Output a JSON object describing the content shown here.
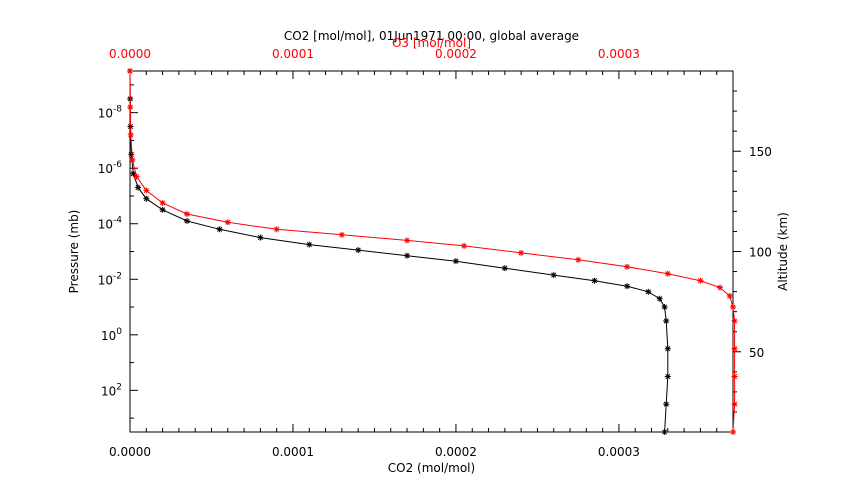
{
  "chart_data": {
    "type": "line",
    "title": "CO2 [mol/mol], 01Jun1971 00:00, global average",
    "xlabel": "CO2 (mol/mol)",
    "x2label": "O3 [mol/mol]",
    "ylabel": "Pressure (mb)",
    "y2label": "Altitude (km)",
    "xlim": [
      0,
      0.00037
    ],
    "x2lim": [
      0,
      0.00037
    ],
    "ylim_log10": [
      -9.5,
      3.5
    ],
    "y2lim": [
      10,
      190
    ],
    "x_ticks": [
      {
        "value": 0.0,
        "label": "0.0000"
      },
      {
        "value": 0.0001,
        "label": "0.0001"
      },
      {
        "value": 0.0002,
        "label": "0.0002"
      },
      {
        "value": 0.0003,
        "label": "0.0003"
      }
    ],
    "x2_ticks": [
      {
        "value": 0.0,
        "label": "0.0000"
      },
      {
        "value": 0.0001,
        "label": "0.0001"
      },
      {
        "value": 0.0002,
        "label": "0.0002"
      },
      {
        "value": 0.0003,
        "label": "0.0003"
      }
    ],
    "y_ticks": [
      {
        "exp": -8,
        "base": "10",
        "sup": "-8"
      },
      {
        "exp": -6,
        "base": "10",
        "sup": "-6"
      },
      {
        "exp": -4,
        "base": "10",
        "sup": "-4"
      },
      {
        "exp": -2,
        "base": "10",
        "sup": "-2"
      },
      {
        "exp": 0,
        "base": "10",
        "sup": "0"
      },
      {
        "exp": 2,
        "base": "10",
        "sup": "2"
      }
    ],
    "y2_ticks": [
      {
        "value": 50,
        "label": "50"
      },
      {
        "value": 100,
        "label": "100"
      },
      {
        "value": 150,
        "label": "150"
      }
    ],
    "series": [
      {
        "color": "#000000",
        "marker": "asterisk",
        "points": [
          [
            0.000328,
            3.5
          ],
          [
            0.000329,
            2.5
          ],
          [
            0.00033,
            1.5
          ],
          [
            0.00033,
            0.5
          ],
          [
            0.000329,
            -0.5
          ],
          [
            0.000328,
            -1.0
          ],
          [
            0.000325,
            -1.3
          ],
          [
            0.000318,
            -1.55
          ],
          [
            0.000305,
            -1.75
          ],
          [
            0.000285,
            -1.95
          ],
          [
            0.00026,
            -2.15
          ],
          [
            0.00023,
            -2.4
          ],
          [
            0.0002,
            -2.65
          ],
          [
            0.00017,
            -2.85
          ],
          [
            0.00014,
            -3.05
          ],
          [
            0.00011,
            -3.25
          ],
          [
            8e-05,
            -3.5
          ],
          [
            5.5e-05,
            -3.8
          ],
          [
            3.5e-05,
            -4.1
          ],
          [
            2e-05,
            -4.5
          ],
          [
            1e-05,
            -4.9
          ],
          [
            5e-06,
            -5.3
          ],
          [
            2e-06,
            -5.8
          ],
          [
            8e-07,
            -6.5
          ],
          [
            3e-07,
            -7.5
          ],
          [
            1e-07,
            -8.5
          ],
          [
            0.0,
            -9.5
          ]
        ]
      },
      {
        "color": "#ff0000",
        "marker": "asterisk",
        "points": [
          [
            0.00037,
            3.5
          ],
          [
            0.000371,
            2.5
          ],
          [
            0.000371,
            1.5
          ],
          [
            0.000371,
            0.5
          ],
          [
            0.000371,
            -0.5
          ],
          [
            0.00037,
            -1.0
          ],
          [
            0.000368,
            -1.4
          ],
          [
            0.000362,
            -1.7
          ],
          [
            0.00035,
            -1.95
          ],
          [
            0.00033,
            -2.2
          ],
          [
            0.000305,
            -2.45
          ],
          [
            0.000275,
            -2.7
          ],
          [
            0.00024,
            -2.95
          ],
          [
            0.000205,
            -3.2
          ],
          [
            0.00017,
            -3.4
          ],
          [
            0.00013,
            -3.6
          ],
          [
            9e-05,
            -3.8
          ],
          [
            6e-05,
            -4.05
          ],
          [
            3.5e-05,
            -4.35
          ],
          [
            2e-05,
            -4.75
          ],
          [
            1e-05,
            -5.2
          ],
          [
            4e-06,
            -5.7
          ],
          [
            1.5e-06,
            -6.3
          ],
          [
            5e-07,
            -7.2
          ],
          [
            2e-07,
            -8.2
          ],
          [
            0.0,
            -9.5
          ]
        ]
      }
    ]
  }
}
